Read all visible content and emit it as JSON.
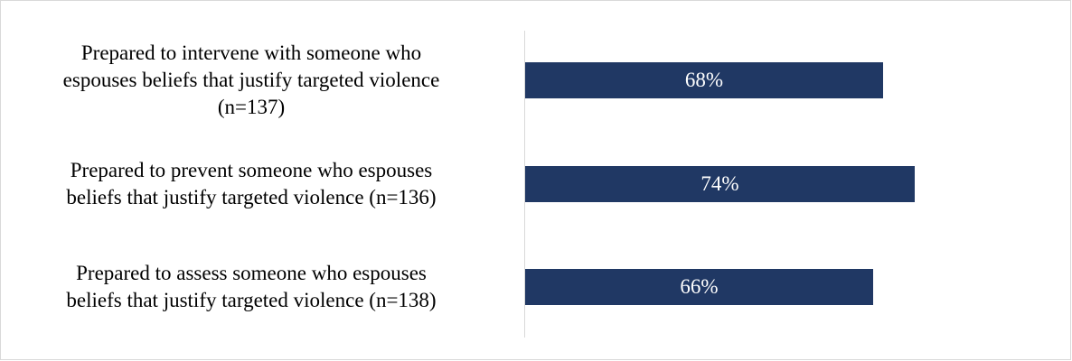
{
  "chart_data": {
    "type": "bar",
    "orientation": "horizontal",
    "title": "",
    "xlabel": "",
    "ylabel": "",
    "categories": [
      "Prepared to intervene with someone who espouses beliefs that justify targeted violence (n=137)",
      "Prepared to prevent someone who espouses beliefs that justify targeted violence (n=136)",
      "Prepared to assess someone who espouses beliefs that justify targeted violence (n=138)"
    ],
    "category_lines": [
      [
        "Prepared to intervene with someone who",
        "espouses beliefs that justify targeted violence",
        "(n=137)"
      ],
      [
        "Prepared to prevent someone who espouses",
        "beliefs that justify targeted violence (n=136)"
      ],
      [
        "Prepared to assess someone who espouses",
        "beliefs that justify targeted violence (n=138)"
      ]
    ],
    "values": [
      68,
      74,
      66
    ],
    "value_labels": [
      "68%",
      "74%",
      "66%"
    ],
    "xlim": [
      0,
      100
    ],
    "grid": false,
    "bar_color": "#203864",
    "value_label_color": "#ffffff"
  }
}
